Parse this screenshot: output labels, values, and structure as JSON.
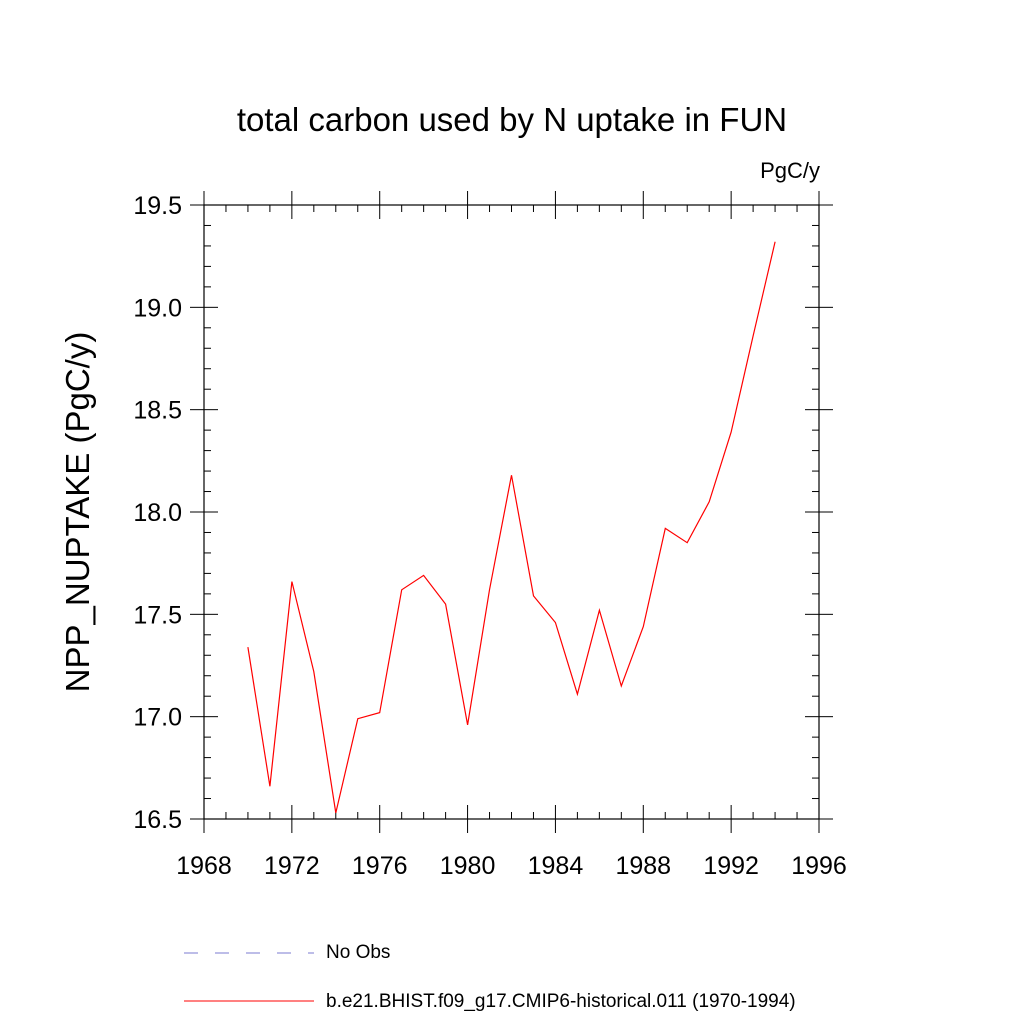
{
  "chart_data": {
    "type": "line",
    "title": "total carbon used by N uptake in FUN",
    "units_label": "PgC/y",
    "ylabel": "NPP_NUPTAKE  (PgC/y)",
    "xlabel": "",
    "xlim": [
      1968,
      1996
    ],
    "ylim": [
      16.5,
      19.5
    ],
    "x_ticks": [
      "1968",
      "1972",
      "1976",
      "1980",
      "1984",
      "1988",
      "1992",
      "1996"
    ],
    "y_ticks": [
      "16.5",
      "17.0",
      "17.5",
      "18.0",
      "18.5",
      "19.0",
      "19.5"
    ],
    "grid": false,
    "legend_position": "bottom",
    "series": [
      {
        "name": "b.e21.BHIST.f09_g17.CMIP6-historical.011 (1970-1994)",
        "color": "#ff0000",
        "style": "solid",
        "x": [
          1970,
          1971,
          1972,
          1973,
          1974,
          1975,
          1976,
          1977,
          1978,
          1979,
          1980,
          1981,
          1982,
          1983,
          1984,
          1985,
          1986,
          1987,
          1988,
          1989,
          1990,
          1991,
          1992,
          1993,
          1994
        ],
        "values": [
          17.34,
          16.66,
          17.66,
          17.22,
          16.53,
          16.99,
          17.02,
          17.62,
          17.69,
          17.55,
          16.96,
          17.62,
          18.18,
          17.59,
          17.46,
          17.11,
          17.52,
          17.15,
          17.44,
          17.92,
          17.85,
          18.05,
          18.39,
          18.86,
          19.32
        ]
      },
      {
        "name": "No Obs",
        "color": "#7b7bd0",
        "style": "dashed",
        "x": [],
        "values": []
      }
    ]
  }
}
